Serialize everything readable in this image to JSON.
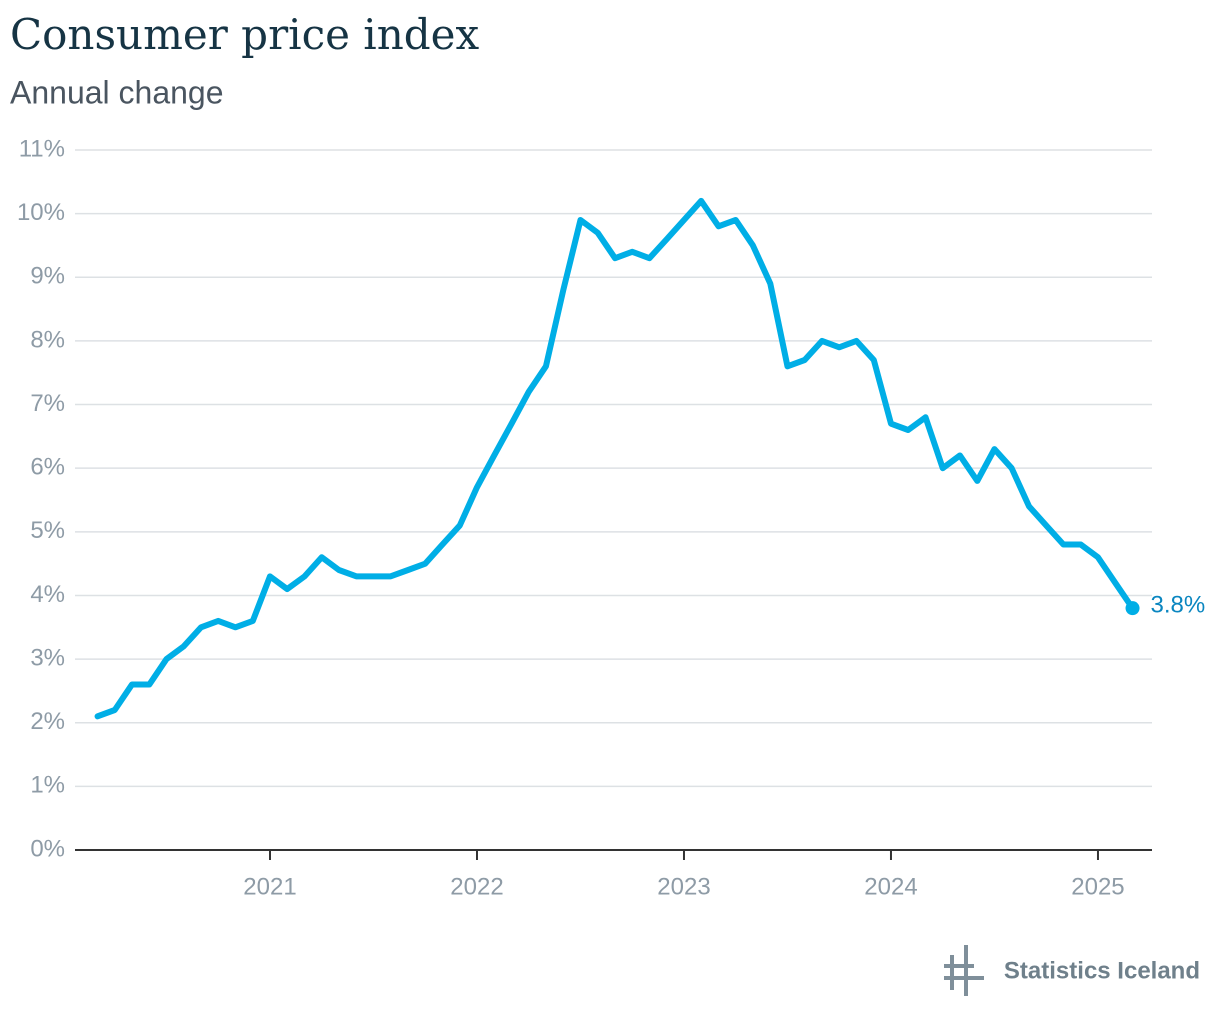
{
  "chart_data": {
    "type": "line",
    "title": "Consumer price index",
    "subtitle": "Annual change",
    "source": "Statistics Iceland",
    "x": [
      2020.167,
      2020.25,
      2020.333,
      2020.417,
      2020.5,
      2020.583,
      2020.667,
      2020.75,
      2020.833,
      2020.917,
      2021,
      2021.083,
      2021.167,
      2021.25,
      2021.333,
      2021.417,
      2021.5,
      2021.583,
      2021.667,
      2021.75,
      2021.833,
      2021.917,
      2022,
      2022.083,
      2022.167,
      2022.25,
      2022.333,
      2022.417,
      2022.5,
      2022.583,
      2022.667,
      2022.75,
      2022.833,
      2022.917,
      2023,
      2023.083,
      2023.167,
      2023.25,
      2023.333,
      2023.417,
      2023.5,
      2023.583,
      2023.667,
      2023.75,
      2023.833,
      2023.917,
      2024,
      2024.083,
      2024.167,
      2024.25,
      2024.333,
      2024.417,
      2024.5,
      2024.583,
      2024.667,
      2024.75,
      2024.833,
      2024.917,
      2025,
      2025.083,
      2025.167
    ],
    "series": [
      {
        "name": "Consumer price index",
        "color": "#00aee6",
        "values": [
          2.1,
          2.2,
          2.6,
          2.6,
          3.0,
          3.2,
          3.5,
          3.6,
          3.5,
          3.6,
          4.3,
          4.1,
          4.3,
          4.6,
          4.4,
          4.3,
          4.3,
          4.3,
          4.4,
          4.5,
          4.8,
          5.1,
          5.7,
          6.2,
          6.7,
          7.2,
          7.6,
          8.8,
          9.9,
          9.7,
          9.3,
          9.4,
          9.3,
          9.6,
          9.9,
          10.2,
          9.8,
          9.9,
          9.5,
          8.9,
          7.6,
          7.7,
          8.0,
          7.9,
          8.0,
          7.7,
          6.7,
          6.6,
          6.8,
          6.0,
          6.2,
          5.8,
          6.3,
          6.0,
          5.4,
          5.1,
          4.8,
          4.8,
          4.6,
          4.2,
          3.8
        ]
      }
    ],
    "last_value_label": "3.8%",
    "xlim": [
      2020.058,
      2025.261
    ],
    "xticks": [
      2021,
      2022,
      2023,
      2024,
      2025
    ],
    "ylim": [
      0,
      11
    ],
    "yticks": [
      {
        "value": 0,
        "label": "0%"
      },
      {
        "value": 1,
        "label": "1%"
      },
      {
        "value": 2,
        "label": "2%"
      },
      {
        "value": 3,
        "label": "3%"
      },
      {
        "value": 4,
        "label": "4%"
      },
      {
        "value": 5,
        "label": "5%"
      },
      {
        "value": 6,
        "label": "6%"
      },
      {
        "value": 7,
        "label": "7%"
      },
      {
        "value": 8,
        "label": "8%"
      },
      {
        "value": 9,
        "label": "9%"
      },
      {
        "value": 10,
        "label": "10%"
      },
      {
        "value": 11,
        "label": "11%"
      }
    ],
    "grid": true
  }
}
